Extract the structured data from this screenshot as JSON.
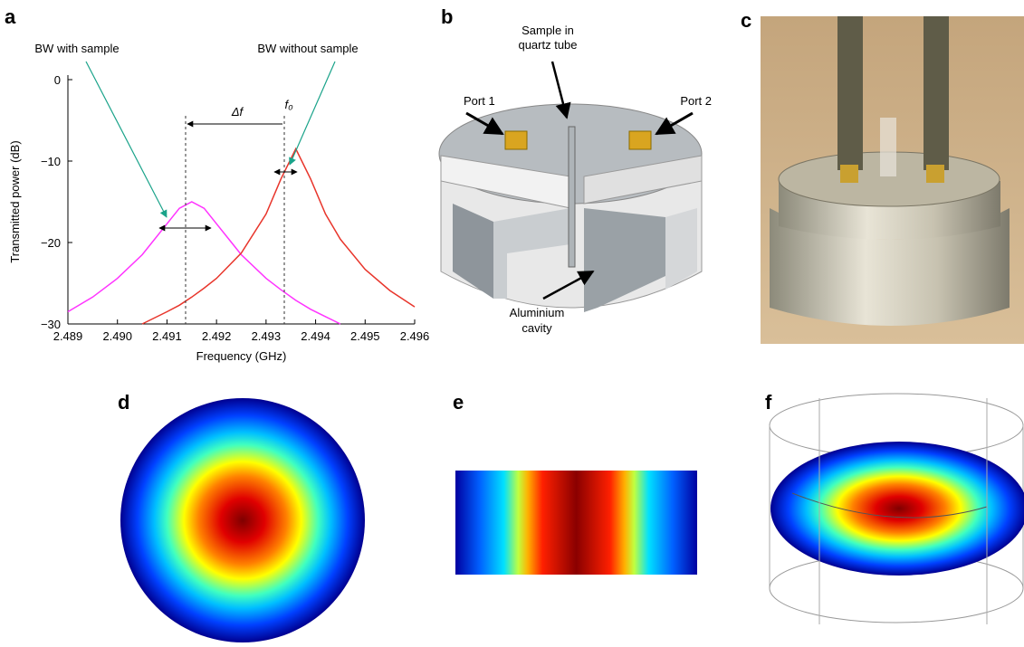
{
  "panel_labels": [
    "a",
    "b",
    "c",
    "d",
    "e",
    "f"
  ],
  "chart_data": {
    "type": "line",
    "x_label": "Frequency (GHz)",
    "y_label": "Transmitted power (dB)",
    "annotations": [
      "BW with sample",
      "BW without sample",
      "Δf",
      "f₀"
    ],
    "x": [
      2.489,
      2.4895,
      2.49,
      2.4905,
      2.491,
      2.49125,
      2.4915,
      2.49175,
      2.492,
      2.4925,
      2.493,
      2.4933,
      2.4936,
      2.4939,
      2.4942,
      2.4945,
      2.495,
      2.4955,
      2.496
    ],
    "series": [
      {
        "color": "#ff33ff",
        "values": [
          -28.5,
          -26.7,
          -24.4,
          -21.5,
          -17.7,
          -15.8,
          -15,
          -15.8,
          -17.7,
          -21.5,
          -24.4,
          -25.8,
          -27.1,
          -28.2,
          -29.1,
          -30,
          null,
          null,
          null
        ]
      },
      {
        "color": "#e8352b",
        "values": [
          null,
          null,
          null,
          -30,
          -28.5,
          -27.7,
          -26.7,
          -25.6,
          -24.4,
          -21.3,
          -16.5,
          -12.2,
          -8.5,
          -12.2,
          -16.5,
          -19.6,
          -23.3,
          -25.9,
          -27.9
        ]
      }
    ],
    "xlim": [
      2.489,
      2.496
    ],
    "ylim": [
      -30,
      0
    ],
    "xticks": [
      2.489,
      {
        "value": 2.49,
        "label": "2.490"
      },
      2.491,
      2.492,
      2.493,
      2.494,
      2.495,
      2.496
    ],
    "yticks": [
      {
        "value": -30,
        "label": "−30"
      },
      {
        "value": -20,
        "label": "−20"
      },
      {
        "value": -10,
        "label": "−10"
      },
      0
    ]
  },
  "diagram_b": {
    "labels": [
      "Sample in",
      "quartz tube",
      "Port 1",
      "Port 2",
      "Aluminium",
      "cavity"
    ]
  }
}
